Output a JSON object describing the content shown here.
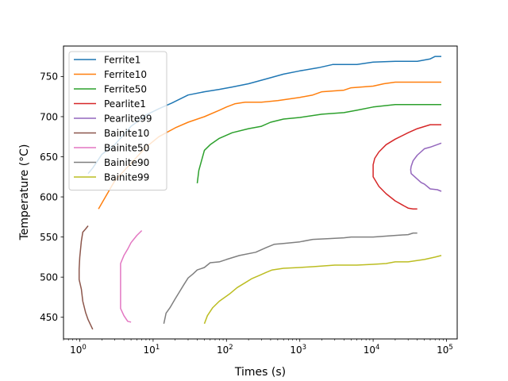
{
  "chart_data": {
    "type": "line",
    "title": "",
    "xlabel": "Times (s)",
    "ylabel": "Temperature (°C)",
    "x_scale": "log",
    "xlim": [
      0.6,
      140000
    ],
    "ylim": [
      423,
      788
    ],
    "x_ticks": [
      {
        "value": 1,
        "label": "10",
        "exp": "0"
      },
      {
        "value": 10,
        "label": "10",
        "exp": "1"
      },
      {
        "value": 100,
        "label": "10",
        "exp": "2"
      },
      {
        "value": 1000,
        "label": "10",
        "exp": "3"
      },
      {
        "value": 10000,
        "label": "10",
        "exp": "4"
      },
      {
        "value": 100000,
        "label": "10",
        "exp": "5"
      }
    ],
    "y_ticks": [
      450,
      500,
      550,
      600,
      650,
      700,
      750
    ],
    "grid": false,
    "legend_position": "upper-left",
    "series": [
      {
        "name": "Ferrite1",
        "color": "#1f77b4",
        "points": [
          [
            1.3,
            629
          ],
          [
            1.5,
            636
          ],
          [
            2,
            653
          ],
          [
            3,
            665
          ],
          [
            5,
            688
          ],
          [
            8,
            702
          ],
          [
            12,
            710
          ],
          [
            18,
            717
          ],
          [
            30,
            727
          ],
          [
            50,
            731
          ],
          [
            80,
            734
          ],
          [
            120,
            737
          ],
          [
            200,
            741
          ],
          [
            350,
            747
          ],
          [
            600,
            753
          ],
          [
            1000,
            757
          ],
          [
            1800,
            761
          ],
          [
            2800,
            765
          ],
          [
            6000,
            765
          ],
          [
            10000,
            768
          ],
          [
            20000,
            769
          ],
          [
            40000,
            769
          ],
          [
            60000,
            772
          ],
          [
            70000,
            775
          ],
          [
            85000,
            775
          ]
        ]
      },
      {
        "name": "Ferrite10",
        "color": "#ff7f0e",
        "points": [
          [
            1.8,
            585
          ],
          [
            3,
            620
          ],
          [
            5,
            642
          ],
          [
            8,
            662
          ],
          [
            12,
            675
          ],
          [
            20,
            686
          ],
          [
            30,
            693
          ],
          [
            50,
            700
          ],
          [
            80,
            708
          ],
          [
            100,
            712
          ],
          [
            130,
            716
          ],
          [
            180,
            718
          ],
          [
            300,
            718
          ],
          [
            500,
            720
          ],
          [
            1000,
            724
          ],
          [
            1500,
            727
          ],
          [
            2000,
            731
          ],
          [
            4000,
            733
          ],
          [
            5000,
            736
          ],
          [
            10000,
            738
          ],
          [
            14000,
            741
          ],
          [
            20000,
            743
          ],
          [
            40000,
            743
          ],
          [
            85000,
            743
          ]
        ]
      },
      {
        "name": "Ferrite50",
        "color": "#2ca02c",
        "points": [
          [
            40,
            617
          ],
          [
            42,
            633
          ],
          [
            45,
            643
          ],
          [
            50,
            658
          ],
          [
            60,
            665
          ],
          [
            80,
            673
          ],
          [
            120,
            680
          ],
          [
            200,
            685
          ],
          [
            300,
            688
          ],
          [
            400,
            693
          ],
          [
            600,
            697
          ],
          [
            1000,
            699
          ],
          [
            2000,
            703
          ],
          [
            4000,
            705
          ],
          [
            6000,
            708
          ],
          [
            10000,
            712
          ],
          [
            20000,
            715
          ],
          [
            40000,
            715
          ],
          [
            85000,
            715
          ]
        ]
      },
      {
        "name": "Pearlite1",
        "color": "#d62728",
        "points": [
          [
            85000,
            690
          ],
          [
            60000,
            690
          ],
          [
            40000,
            685
          ],
          [
            30000,
            680
          ],
          [
            20000,
            672
          ],
          [
            15000,
            665
          ],
          [
            12000,
            656
          ],
          [
            10500,
            648
          ],
          [
            10000,
            640
          ],
          [
            10000,
            625
          ],
          [
            12000,
            613
          ],
          [
            15000,
            604
          ],
          [
            20000,
            595
          ],
          [
            25000,
            590
          ],
          [
            30000,
            586
          ],
          [
            35000,
            585
          ],
          [
            40000,
            585
          ]
        ]
      },
      {
        "name": "Pearlite99",
        "color": "#9467bd",
        "points": [
          [
            85000,
            667
          ],
          [
            60000,
            662
          ],
          [
            50000,
            660
          ],
          [
            40000,
            652
          ],
          [
            35000,
            645
          ],
          [
            33000,
            638
          ],
          [
            32500,
            634
          ],
          [
            33000,
            629
          ],
          [
            38000,
            624
          ],
          [
            45000,
            618
          ],
          [
            50000,
            616
          ],
          [
            60000,
            610
          ],
          [
            75000,
            609
          ],
          [
            80000,
            608
          ],
          [
            85000,
            607
          ]
        ]
      },
      {
        "name": "Bainite10",
        "color": "#8c564b",
        "points": [
          [
            1.3,
            564
          ],
          [
            1.2,
            560
          ],
          [
            1.1,
            556
          ],
          [
            1.05,
            545
          ],
          [
            1.0,
            525
          ],
          [
            0.98,
            510
          ],
          [
            0.98,
            497
          ],
          [
            1.05,
            485
          ],
          [
            1.1,
            470
          ],
          [
            1.2,
            456
          ],
          [
            1.3,
            447
          ],
          [
            1.5,
            435
          ]
        ]
      },
      {
        "name": "Bainite50",
        "color": "#e377c2",
        "points": [
          [
            7,
            558
          ],
          [
            6,
            552
          ],
          [
            5,
            543
          ],
          [
            4.5,
            535
          ],
          [
            4,
            527
          ],
          [
            3.6,
            517
          ],
          [
            3.6,
            461
          ],
          [
            4,
            452
          ],
          [
            4.5,
            445
          ],
          [
            5,
            444
          ]
        ]
      },
      {
        "name": "Bainite90",
        "color": "#7f7f7f",
        "points": [
          [
            14,
            442
          ],
          [
            15,
            455
          ],
          [
            17,
            462
          ],
          [
            20,
            473
          ],
          [
            23,
            482
          ],
          [
            26,
            490
          ],
          [
            30,
            499
          ],
          [
            35,
            504
          ],
          [
            40,
            509
          ],
          [
            50,
            512
          ],
          [
            60,
            518
          ],
          [
            80,
            519
          ],
          [
            100,
            522
          ],
          [
            150,
            527
          ],
          [
            250,
            531
          ],
          [
            350,
            537
          ],
          [
            450,
            541
          ],
          [
            600,
            542
          ],
          [
            1000,
            544
          ],
          [
            1500,
            547
          ],
          [
            2500,
            548
          ],
          [
            4000,
            549
          ],
          [
            5000,
            550
          ],
          [
            10000,
            550
          ],
          [
            20000,
            552
          ],
          [
            30000,
            553
          ],
          [
            35000,
            555
          ],
          [
            40000,
            555
          ]
        ]
      },
      {
        "name": "Bainite99",
        "color": "#bcbd22",
        "points": [
          [
            50,
            442
          ],
          [
            55,
            452
          ],
          [
            65,
            462
          ],
          [
            80,
            470
          ],
          [
            110,
            479
          ],
          [
            140,
            487
          ],
          [
            180,
            493
          ],
          [
            220,
            498
          ],
          [
            280,
            502
          ],
          [
            350,
            506
          ],
          [
            420,
            509
          ],
          [
            600,
            511
          ],
          [
            1000,
            512
          ],
          [
            1500,
            513
          ],
          [
            3000,
            515
          ],
          [
            6000,
            515
          ],
          [
            10000,
            516
          ],
          [
            15000,
            517
          ],
          [
            20000,
            519
          ],
          [
            30000,
            519
          ],
          [
            50000,
            522
          ],
          [
            70000,
            525
          ],
          [
            85000,
            527
          ]
        ]
      }
    ]
  }
}
